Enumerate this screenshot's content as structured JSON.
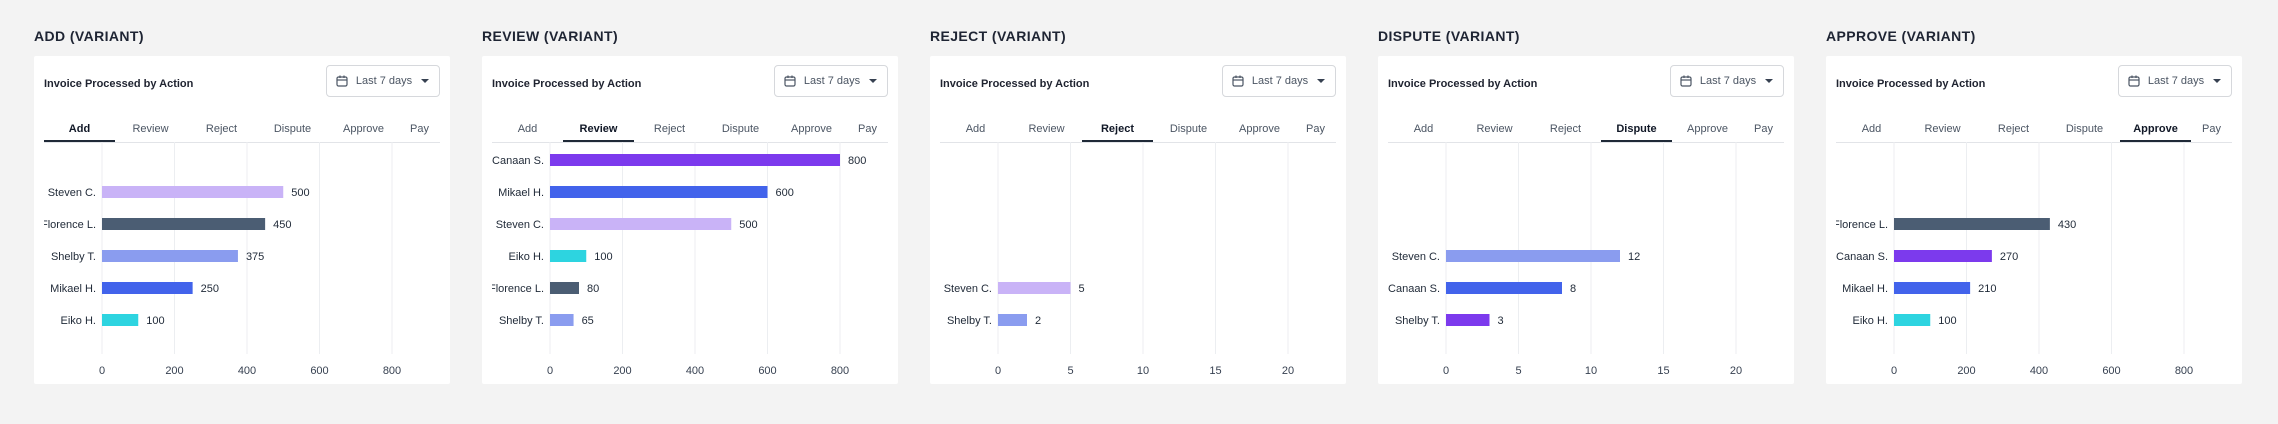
{
  "tabs": [
    "Add",
    "Review",
    "Reject",
    "Dispute",
    "Approve",
    "Pay"
  ],
  "card_title": "Invoice Processed by Action",
  "date_range_label": "Last 7 days",
  "icons": {
    "calendar": "calendar-icon",
    "dropdown": "chevron-down-icon"
  },
  "colors": {
    "lavender": "#c9b3f7",
    "slate": "#4b5d73",
    "periwinkle": "#8a9cef",
    "royal": "#4263eb",
    "cyan": "#2dd4e0",
    "violet": "#7c3aed"
  },
  "chart_data": [
    {
      "type": "bar",
      "orientation": "horizontal",
      "variant_title": "ADD (VARIANT)",
      "active_tab": "Add",
      "categories": [
        "Steven C.",
        "Florence L.",
        "Shelby T.",
        "Mikael H.",
        "Eiko H."
      ],
      "values": [
        500,
        450,
        375,
        250,
        100
      ],
      "colors": [
        "#c9b3f7",
        "#4b5d73",
        "#8a9cef",
        "#4263eb",
        "#2dd4e0"
      ],
      "xlim": [
        0,
        800
      ],
      "xticks": [
        0,
        200,
        400,
        600,
        800
      ],
      "slots": 6,
      "grid": true
    },
    {
      "type": "bar",
      "orientation": "horizontal",
      "variant_title": "REVIEW (VARIANT)",
      "active_tab": "Review",
      "categories": [
        "Canaan S.",
        "Mikael H.",
        "Steven C.",
        "Eiko H.",
        "Florence L.",
        "Shelby T."
      ],
      "values": [
        800,
        600,
        500,
        100,
        80,
        65
      ],
      "colors": [
        "#7c3aed",
        "#4263eb",
        "#c9b3f7",
        "#2dd4e0",
        "#4b5d73",
        "#8a9cef"
      ],
      "xlim": [
        0,
        800
      ],
      "xticks": [
        0,
        200,
        400,
        600,
        800
      ],
      "slots": 6,
      "grid": true
    },
    {
      "type": "bar",
      "orientation": "horizontal",
      "variant_title": "REJECT (VARIANT)",
      "active_tab": "Reject",
      "categories": [
        "Steven C.",
        "Shelby T."
      ],
      "values": [
        5,
        2
      ],
      "colors": [
        "#c9b3f7",
        "#8a9cef"
      ],
      "xlim": [
        0,
        20
      ],
      "xticks": [
        0,
        5,
        10,
        15,
        20
      ],
      "slots": 6,
      "grid": true
    },
    {
      "type": "bar",
      "orientation": "horizontal",
      "variant_title": "DISPUTE (VARIANT)",
      "active_tab": "Dispute",
      "categories": [
        "Steven C.",
        "Canaan S.",
        "Shelby T."
      ],
      "values": [
        12,
        8,
        3
      ],
      "colors": [
        "#8a9cef",
        "#4263eb",
        "#7c3aed"
      ],
      "xlim": [
        0,
        20
      ],
      "xticks": [
        0,
        5,
        10,
        15,
        20
      ],
      "slots": 6,
      "grid": true
    },
    {
      "type": "bar",
      "orientation": "horizontal",
      "variant_title": "APPROVE (VARIANT)",
      "active_tab": "Approve",
      "categories": [
        "Florence L.",
        "Canaan S.",
        "Mikael H.",
        "Eiko H."
      ],
      "values": [
        430,
        270,
        210,
        100
      ],
      "colors": [
        "#4b5d73",
        "#7c3aed",
        "#4263eb",
        "#2dd4e0"
      ],
      "xlim": [
        0,
        800
      ],
      "xticks": [
        0,
        200,
        400,
        600,
        800
      ],
      "slots": 6,
      "grid": true
    }
  ]
}
